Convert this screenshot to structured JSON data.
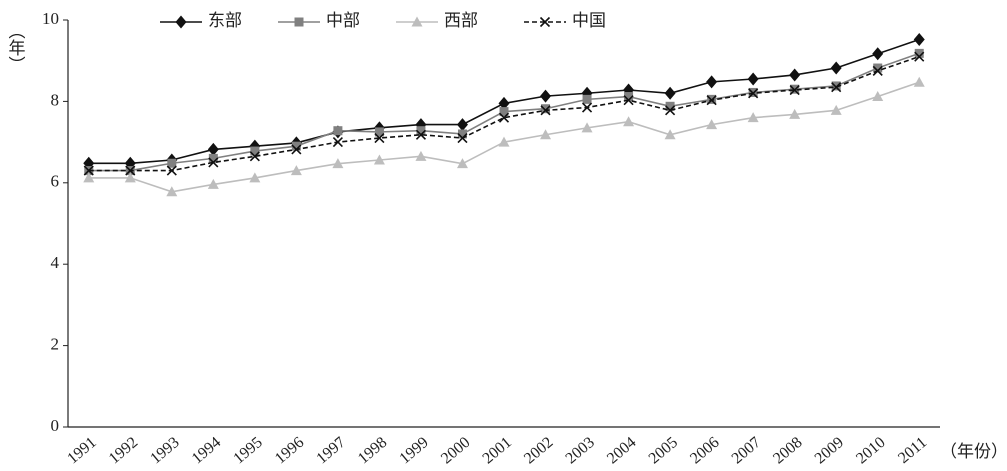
{
  "chart_data": {
    "type": "line",
    "y_label": "（年）",
    "x_label": "（年份）",
    "categories": [
      "1991",
      "1992",
      "1993",
      "1994",
      "1995",
      "1996",
      "1997",
      "1998",
      "1999",
      "2000",
      "2001",
      "2002",
      "2003",
      "2004",
      "2005",
      "2006",
      "2007",
      "2008",
      "2009",
      "2010",
      "2011"
    ],
    "series": [
      {
        "name": "东部",
        "color": "#111111",
        "marker": "diamond",
        "dashed": false,
        "values": [
          6.48,
          6.48,
          6.56,
          6.82,
          6.9,
          6.98,
          7.25,
          7.35,
          7.43,
          7.43,
          7.95,
          8.13,
          8.2,
          8.28,
          8.2,
          8.48,
          8.55,
          8.65,
          8.82,
          9.17,
          9.52
        ]
      },
      {
        "name": "中部",
        "color": "#808080",
        "marker": "square",
        "dashed": false,
        "values": [
          6.3,
          6.3,
          6.48,
          6.6,
          6.78,
          6.9,
          7.28,
          7.25,
          7.28,
          7.2,
          7.75,
          7.82,
          8.05,
          8.12,
          7.88,
          8.05,
          8.22,
          8.3,
          8.38,
          8.82,
          9.18
        ]
      },
      {
        "name": "西部",
        "color": "#bdbdbd",
        "marker": "triangle",
        "dashed": false,
        "values": [
          6.12,
          6.12,
          5.78,
          5.96,
          6.12,
          6.3,
          6.47,
          6.56,
          6.65,
          6.47,
          7.0,
          7.18,
          7.35,
          7.5,
          7.18,
          7.43,
          7.6,
          7.68,
          7.78,
          8.12,
          8.47
        ]
      },
      {
        "name": "中国",
        "color": "#111111",
        "marker": "x",
        "dashed": true,
        "values": [
          6.3,
          6.3,
          6.3,
          6.5,
          6.65,
          6.82,
          7.0,
          7.1,
          7.18,
          7.1,
          7.6,
          7.78,
          7.85,
          8.03,
          7.78,
          8.03,
          8.2,
          8.28,
          8.35,
          8.75,
          9.1
        ]
      }
    ],
    "ylim": [
      0,
      10
    ],
    "yticks": [
      0,
      2,
      4,
      6,
      8,
      10
    ],
    "grid": false
  }
}
